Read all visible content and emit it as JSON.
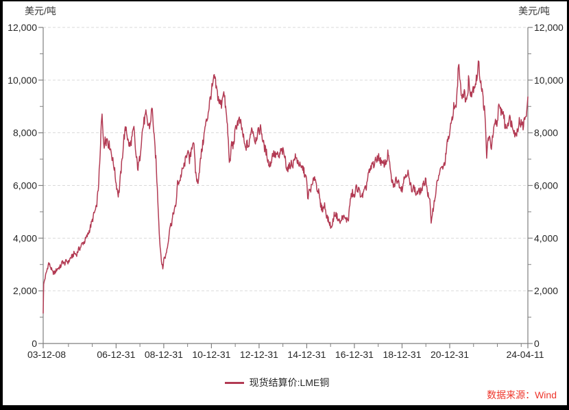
{
  "chart": {
    "unit_left": "美元/吨",
    "unit_right": "美元/吨"
  },
  "legend": {
    "label": "现货结算价:LME铜",
    "color": "#b23a53"
  },
  "footer": {
    "source_label": "数据来源：Wind",
    "color": "#ee352b"
  },
  "style": {
    "grid_color": "#d9d9d9",
    "axis_color": "#7f7f7f",
    "tick_text_color": "#262626",
    "background": "#ffffff"
  },
  "chart_data": {
    "type": "line",
    "unit": "美元/吨",
    "ylim": [
      0,
      12000
    ],
    "x_range_years": [
      2003.94,
      2024.28
    ],
    "grid": "dashed-horizontal",
    "legend_position": "bottom-center",
    "y_major_ticks": [
      {
        "v": 0,
        "label": "0"
      },
      {
        "v": 2000,
        "label": "2,000"
      },
      {
        "v": 4000,
        "label": "4,000"
      },
      {
        "v": 6000,
        "label": "6,000"
      },
      {
        "v": 8000,
        "label": "8,000"
      },
      {
        "v": 10000,
        "label": "10,000"
      },
      {
        "v": 12000,
        "label": "12,000"
      }
    ],
    "y_minor_ticks": [
      1000,
      3000,
      5000,
      7000,
      9000,
      11000
    ],
    "x_major_ticks": [
      {
        "t": 2003.94,
        "label": "03-12-08"
      },
      {
        "t": 2007.0,
        "label": "06-12-31"
      },
      {
        "t": 2009.0,
        "label": "08-12-31"
      },
      {
        "t": 2011.0,
        "label": "10-12-31"
      },
      {
        "t": 2013.0,
        "label": "12-12-31"
      },
      {
        "t": 2015.0,
        "label": "14-12-31"
      },
      {
        "t": 2017.0,
        "label": "16-12-31"
      },
      {
        "t": 2019.0,
        "label": "18-12-31"
      },
      {
        "t": 2021.0,
        "label": "20-12-31"
      },
      {
        "t": 2024.28,
        "label": "24-04-11"
      }
    ],
    "x_minor_ticks": [
      2005.0,
      2006.0,
      2008.0,
      2010.0,
      2012.0,
      2014.0,
      2016.0,
      2018.0,
      2020.0,
      2022.0,
      2023.0,
      2024.0
    ],
    "series": [
      {
        "name": "现货结算价:LME铜",
        "color": "#b23a53",
        "points": [
          [
            2003.94,
            1150
          ],
          [
            2003.96,
            2250
          ],
          [
            2004.0,
            2420
          ],
          [
            2004.08,
            2720
          ],
          [
            2004.17,
            3050
          ],
          [
            2004.25,
            2900
          ],
          [
            2004.33,
            2700
          ],
          [
            2004.42,
            2680
          ],
          [
            2004.5,
            2800
          ],
          [
            2004.58,
            2870
          ],
          [
            2004.67,
            2920
          ],
          [
            2004.75,
            3120
          ],
          [
            2004.83,
            3020
          ],
          [
            2004.92,
            3140
          ],
          [
            2005.0,
            3080
          ],
          [
            2005.08,
            3240
          ],
          [
            2005.17,
            3320
          ],
          [
            2005.25,
            3440
          ],
          [
            2005.33,
            3360
          ],
          [
            2005.42,
            3560
          ],
          [
            2005.5,
            3640
          ],
          [
            2005.58,
            3800
          ],
          [
            2005.67,
            3860
          ],
          [
            2005.75,
            4010
          ],
          [
            2005.83,
            4160
          ],
          [
            2005.92,
            4420
          ],
          [
            2006.0,
            4660
          ],
          [
            2006.08,
            4940
          ],
          [
            2006.17,
            5140
          ],
          [
            2006.25,
            5850
          ],
          [
            2006.33,
            7100
          ],
          [
            2006.38,
            8350
          ],
          [
            2006.41,
            8790
          ],
          [
            2006.46,
            7950
          ],
          [
            2006.5,
            7280
          ],
          [
            2006.54,
            7920
          ],
          [
            2006.58,
            7680
          ],
          [
            2006.63,
            7820
          ],
          [
            2006.67,
            7580
          ],
          [
            2006.75,
            7480
          ],
          [
            2006.83,
            7080
          ],
          [
            2006.92,
            6680
          ],
          [
            2007.0,
            6080
          ],
          [
            2007.09,
            5660
          ],
          [
            2007.13,
            5820
          ],
          [
            2007.17,
            6230
          ],
          [
            2007.25,
            6940
          ],
          [
            2007.33,
            7820
          ],
          [
            2007.42,
            8230
          ],
          [
            2007.5,
            7680
          ],
          [
            2007.58,
            7480
          ],
          [
            2007.67,
            7820
          ],
          [
            2007.75,
            8160
          ],
          [
            2007.83,
            7160
          ],
          [
            2007.92,
            6640
          ],
          [
            2008.0,
            7080
          ],
          [
            2008.08,
            7940
          ],
          [
            2008.17,
            8420
          ],
          [
            2008.25,
            8680
          ],
          [
            2008.33,
            8320
          ],
          [
            2008.42,
            8240
          ],
          [
            2008.5,
            8920
          ],
          [
            2008.54,
            8680
          ],
          [
            2008.58,
            7980
          ],
          [
            2008.67,
            6980
          ],
          [
            2008.75,
            5480
          ],
          [
            2008.83,
            3880
          ],
          [
            2008.92,
            3020
          ],
          [
            2008.96,
            2820
          ],
          [
            2009.0,
            3220
          ],
          [
            2009.08,
            3320
          ],
          [
            2009.17,
            3760
          ],
          [
            2009.25,
            4420
          ],
          [
            2009.33,
            4580
          ],
          [
            2009.42,
            5020
          ],
          [
            2009.5,
            5180
          ],
          [
            2009.58,
            6080
          ],
          [
            2009.67,
            6180
          ],
          [
            2009.75,
            6480
          ],
          [
            2009.83,
            6680
          ],
          [
            2009.92,
            6980
          ],
          [
            2010.0,
            7380
          ],
          [
            2010.08,
            6880
          ],
          [
            2010.17,
            7460
          ],
          [
            2010.25,
            7720
          ],
          [
            2010.33,
            6550
          ],
          [
            2010.42,
            6050
          ],
          [
            2010.5,
            6620
          ],
          [
            2010.58,
            7240
          ],
          [
            2010.67,
            7760
          ],
          [
            2010.75,
            8280
          ],
          [
            2010.83,
            8560
          ],
          [
            2010.92,
            9120
          ],
          [
            2011.0,
            9580
          ],
          [
            2011.08,
            9880
          ],
          [
            2011.12,
            10150
          ],
          [
            2011.17,
            9860
          ],
          [
            2011.25,
            9480
          ],
          [
            2011.33,
            9160
          ],
          [
            2011.42,
            9080
          ],
          [
            2011.5,
            9620
          ],
          [
            2011.58,
            9080
          ],
          [
            2011.67,
            8260
          ],
          [
            2011.75,
            7020
          ],
          [
            2011.79,
            6780
          ],
          [
            2011.83,
            7580
          ],
          [
            2011.92,
            7520
          ],
          [
            2012.0,
            8060
          ],
          [
            2012.08,
            8380
          ],
          [
            2012.17,
            8460
          ],
          [
            2012.25,
            8280
          ],
          [
            2012.33,
            7880
          ],
          [
            2012.42,
            7380
          ],
          [
            2012.5,
            7580
          ],
          [
            2012.58,
            7480
          ],
          [
            2012.67,
            8180
          ],
          [
            2012.75,
            8080
          ],
          [
            2012.83,
            7680
          ],
          [
            2012.92,
            7920
          ],
          [
            2013.0,
            8080
          ],
          [
            2013.08,
            8180
          ],
          [
            2013.17,
            7620
          ],
          [
            2013.25,
            7380
          ],
          [
            2013.33,
            7180
          ],
          [
            2013.42,
            6740
          ],
          [
            2013.5,
            6880
          ],
          [
            2013.58,
            7240
          ],
          [
            2013.67,
            7140
          ],
          [
            2013.75,
            7180
          ],
          [
            2013.83,
            7040
          ],
          [
            2013.92,
            7320
          ],
          [
            2014.0,
            7280
          ],
          [
            2014.08,
            7080
          ],
          [
            2014.17,
            6640
          ],
          [
            2014.25,
            6660
          ],
          [
            2014.33,
            6840
          ],
          [
            2014.42,
            6800
          ],
          [
            2014.5,
            7080
          ],
          [
            2014.58,
            6980
          ],
          [
            2014.67,
            6840
          ],
          [
            2014.75,
            6640
          ],
          [
            2014.83,
            6680
          ],
          [
            2014.92,
            6420
          ],
          [
            2015.0,
            6180
          ],
          [
            2015.04,
            5460
          ],
          [
            2015.08,
            5720
          ],
          [
            2015.17,
            5880
          ],
          [
            2015.25,
            6040
          ],
          [
            2015.33,
            6380
          ],
          [
            2015.42,
            5960
          ],
          [
            2015.5,
            5740
          ],
          [
            2015.58,
            5240
          ],
          [
            2015.67,
            5080
          ],
          [
            2015.75,
            5260
          ],
          [
            2015.83,
            4880
          ],
          [
            2015.92,
            4640
          ],
          [
            2016.0,
            4480
          ],
          [
            2016.04,
            4340
          ],
          [
            2016.08,
            4580
          ],
          [
            2016.17,
            4940
          ],
          [
            2016.25,
            4860
          ],
          [
            2016.33,
            4700
          ],
          [
            2016.42,
            4580
          ],
          [
            2016.5,
            4840
          ],
          [
            2016.58,
            4760
          ],
          [
            2016.67,
            4690
          ],
          [
            2016.75,
            4740
          ],
          [
            2016.83,
            5480
          ],
          [
            2016.92,
            5720
          ],
          [
            2017.0,
            5540
          ],
          [
            2017.08,
            5940
          ],
          [
            2017.17,
            5840
          ],
          [
            2017.25,
            5680
          ],
          [
            2017.33,
            5580
          ],
          [
            2017.42,
            5780
          ],
          [
            2017.5,
            5940
          ],
          [
            2017.58,
            6440
          ],
          [
            2017.67,
            6540
          ],
          [
            2017.75,
            6840
          ],
          [
            2017.83,
            6780
          ],
          [
            2017.92,
            7000
          ],
          [
            2018.0,
            7100
          ],
          [
            2018.08,
            6980
          ],
          [
            2018.17,
            6780
          ],
          [
            2018.25,
            6840
          ],
          [
            2018.33,
            6860
          ],
          [
            2018.42,
            7260
          ],
          [
            2018.5,
            6580
          ],
          [
            2018.58,
            6120
          ],
          [
            2018.67,
            5980
          ],
          [
            2018.75,
            6240
          ],
          [
            2018.83,
            6180
          ],
          [
            2018.92,
            5980
          ],
          [
            2019.0,
            5880
          ],
          [
            2019.08,
            6240
          ],
          [
            2019.17,
            6460
          ],
          [
            2019.25,
            6480
          ],
          [
            2019.33,
            6040
          ],
          [
            2019.42,
            5880
          ],
          [
            2019.5,
            5940
          ],
          [
            2019.58,
            5680
          ],
          [
            2019.67,
            5740
          ],
          [
            2019.75,
            5780
          ],
          [
            2019.83,
            5840
          ],
          [
            2019.92,
            6080
          ],
          [
            2020.0,
            6240
          ],
          [
            2020.08,
            5680
          ],
          [
            2020.17,
            5340
          ],
          [
            2020.22,
            4620
          ],
          [
            2020.25,
            4860
          ],
          [
            2020.33,
            5240
          ],
          [
            2020.42,
            5780
          ],
          [
            2020.5,
            6240
          ],
          [
            2020.58,
            6480
          ],
          [
            2020.67,
            6680
          ],
          [
            2020.75,
            6690
          ],
          [
            2020.83,
            7080
          ],
          [
            2020.92,
            7740
          ],
          [
            2021.0,
            7940
          ],
          [
            2021.08,
            8440
          ],
          [
            2021.17,
            8980
          ],
          [
            2021.25,
            8880
          ],
          [
            2021.33,
            9840
          ],
          [
            2021.37,
            10720
          ],
          [
            2021.42,
            10240
          ],
          [
            2021.5,
            9380
          ],
          [
            2021.58,
            9540
          ],
          [
            2021.67,
            9320
          ],
          [
            2021.75,
            9280
          ],
          [
            2021.79,
            10180
          ],
          [
            2021.83,
            9680
          ],
          [
            2021.92,
            9520
          ],
          [
            2022.0,
            9740
          ],
          [
            2022.08,
            9880
          ],
          [
            2022.17,
            10240
          ],
          [
            2022.2,
            10680
          ],
          [
            2022.25,
            10280
          ],
          [
            2022.33,
            9820
          ],
          [
            2022.38,
            9420
          ],
          [
            2022.46,
            8860
          ],
          [
            2022.5,
            8240
          ],
          [
            2022.55,
            7020
          ],
          [
            2022.58,
            7560
          ],
          [
            2022.63,
            7840
          ],
          [
            2022.67,
            7740
          ],
          [
            2022.75,
            7480
          ],
          [
            2022.83,
            7980
          ],
          [
            2022.92,
            8380
          ],
          [
            2023.0,
            8380
          ],
          [
            2023.04,
            8980
          ],
          [
            2023.08,
            8880
          ],
          [
            2023.17,
            8840
          ],
          [
            2023.25,
            8780
          ],
          [
            2023.33,
            8180
          ],
          [
            2023.42,
            8320
          ],
          [
            2023.5,
            8580
          ],
          [
            2023.58,
            8380
          ],
          [
            2023.67,
            8240
          ],
          [
            2023.75,
            7880
          ],
          [
            2023.83,
            8080
          ],
          [
            2023.92,
            8440
          ],
          [
            2024.0,
            8340
          ],
          [
            2024.08,
            8240
          ],
          [
            2024.17,
            8640
          ],
          [
            2024.24,
            8880
          ],
          [
            2024.28,
            9360
          ]
        ]
      }
    ]
  }
}
